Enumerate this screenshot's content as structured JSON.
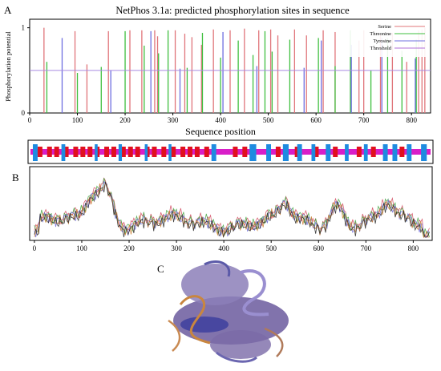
{
  "panel_labels": {
    "a": "A",
    "b": "B",
    "c": "C"
  },
  "chart_data": [
    {
      "panel": "A",
      "type": "bar",
      "title": "NetPhos 3.1a: predicted phosphorylation sites in sequence",
      "xlabel": "Sequence position",
      "ylabel": "Phosphorylation potential",
      "xlim": [
        0,
        840
      ],
      "ylim": [
        0,
        1.1
      ],
      "xticks": [
        0,
        100,
        200,
        300,
        400,
        500,
        600,
        700,
        800
      ],
      "yticks": [
        0,
        1
      ],
      "threshold": 0.5,
      "grid": false,
      "legend_position": "top-right",
      "series": [
        {
          "name": "Serine",
          "color": "#e0747a",
          "x": [
            30,
            95,
            120,
            165,
            210,
            235,
            262,
            268,
            305,
            325,
            340,
            360,
            385,
            420,
            450,
            480,
            505,
            520,
            555,
            580,
            615,
            640,
            690,
            700,
            735,
            760,
            790,
            815,
            822,
            828
          ],
          "values": [
            1.0,
            0.96,
            0.57,
            0.96,
            0.97,
            0.97,
            0.97,
            0.9,
            0.97,
            0.93,
            0.89,
            0.8,
            0.98,
            0.97,
            0.99,
            0.97,
            0.98,
            0.91,
            0.98,
            0.91,
            0.97,
            0.95,
            0.85,
            0.97,
            0.92,
            0.94,
            0.6,
            0.97,
            0.98,
            1.0
          ]
        },
        {
          "name": "Threonine",
          "color": "#3fbf3f",
          "x": [
            36,
            100,
            150,
            200,
            240,
            270,
            290,
            330,
            362,
            400,
            437,
            468,
            493,
            508,
            545,
            605,
            640,
            672,
            715,
            750,
            780,
            810
          ],
          "values": [
            0.6,
            0.47,
            0.54,
            0.96,
            0.79,
            0.7,
            0.97,
            0.53,
            0.94,
            0.65,
            0.85,
            0.68,
            0.96,
            0.72,
            0.86,
            0.88,
            0.55,
            0.97,
            0.5,
            0.88,
            0.73,
            0.86
          ]
        },
        {
          "name": "Tyrosine",
          "color": "#6f6fe0",
          "x": [
            68,
            170,
            254,
            315,
            405,
            476,
            575,
            611,
            674,
            738,
            808
          ],
          "values": [
            0.88,
            0.5,
            0.96,
            0.52,
            0.95,
            0.55,
            0.53,
            0.85,
            0.8,
            0.88,
            0.64
          ]
        },
        {
          "name": "Threshold",
          "color": "#b070d8",
          "values": [
            0.5
          ]
        }
      ]
    },
    {
      "panel": "B",
      "type": "line",
      "xlim": [
        -10,
        840
      ],
      "xticks": [
        0,
        100,
        200,
        300,
        400,
        500,
        600,
        700,
        800
      ],
      "grid": false,
      "peak_regions": [
        {
          "from": 100,
          "to": 160,
          "label": "highest peak near residue 150"
        },
        {
          "from": 610,
          "to": 660
        }
      ]
    }
  ]
}
